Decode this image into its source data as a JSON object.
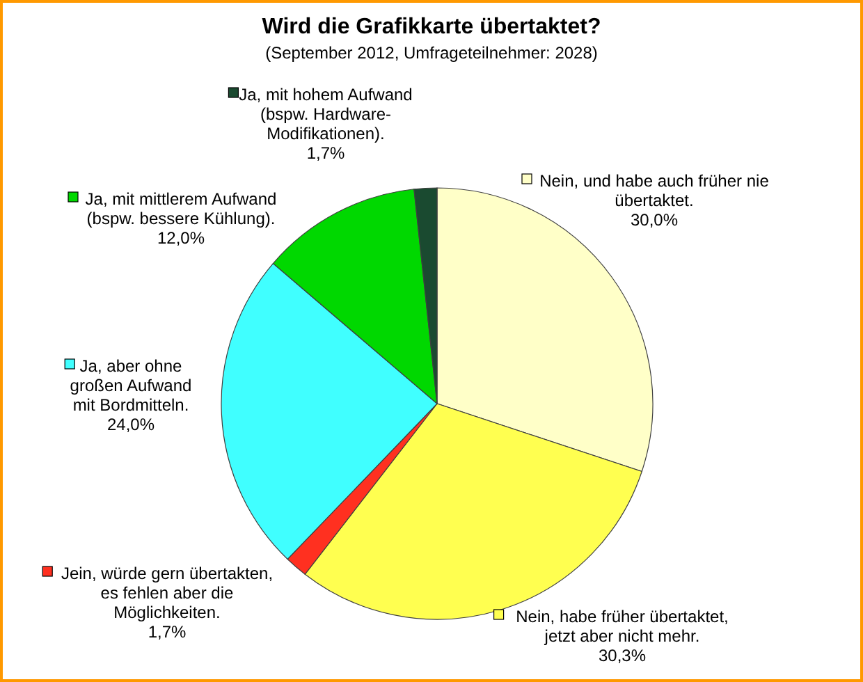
{
  "chart_data": {
    "type": "pie",
    "title": "Wird die Grafikkarte übertaktet?",
    "subtitle": "(September 2012, Umfrageteilnehmer: 2028)",
    "categories": [
      "Nein, und habe auch früher nie\nübertaktet.",
      "Nein, habe früher übertaktet,\njetzt aber nicht mehr.",
      "Jein, würde gern übertakten,\nes fehlen aber die\nMöglichkeiten.",
      "Ja, aber ohne\ngroßen Aufwand\nmit Bordmitteln.",
      "Ja, mit mittlerem Aufwand\n(bspw. bessere Kühlung).",
      "Ja, mit hohem Aufwand\n(bspw. Hardware-\nModifikationen)."
    ],
    "values": [
      30.0,
      30.3,
      1.7,
      24.0,
      12.0,
      1.7
    ],
    "colors": [
      "#ffffc8",
      "#ffff50",
      "#ff3020",
      "#40ffff",
      "#00d800",
      "#1a4a30"
    ],
    "value_labels": [
      "30,0%",
      "30,3%",
      "1,7%",
      "24,0%",
      "12,0%",
      "1,7%"
    ],
    "legend": "top left"
  }
}
